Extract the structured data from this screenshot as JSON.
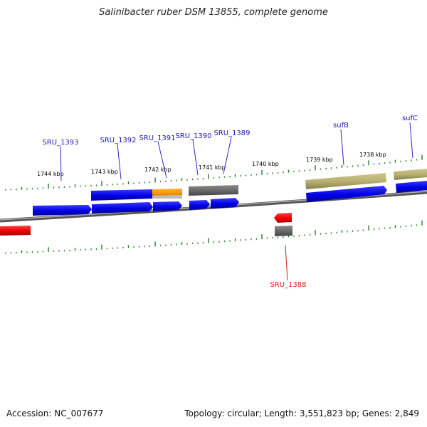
{
  "title": "Salinibacter ruber DSM 13855, complete genome",
  "accession": "Accession: NC_007677",
  "summary": "Topology: circular; Length: 3,551,823 bp; Genes: 2,849",
  "colors": {
    "forward_cds": "#0000ee",
    "reverse_cds": "#ee0000",
    "orange": "#ff9900",
    "gray": "#666666",
    "khaki": "#b5ad6e",
    "tick": "#2a7a2a",
    "label_forward": "#1a1aaa",
    "label_reverse": "#cc2222"
  },
  "scale_labels": [
    "1744 kbp",
    "1743 kbp",
    "1742 kbp",
    "1741 kbp",
    "1740 kbp",
    "1739 kbp",
    "1738 kbp"
  ],
  "gene_labels": [
    {
      "text": "SRU_1393",
      "color": "label_forward"
    },
    {
      "text": "SRU_1392",
      "color": "label_forward"
    },
    {
      "text": "SRU_1391",
      "color": "label_forward"
    },
    {
      "text": "SRU_1390",
      "color": "label_forward"
    },
    {
      "text": "SRU_1389",
      "color": "label_forward"
    },
    {
      "text": "sufB",
      "color": "label_forward"
    },
    {
      "text": "sufC",
      "color": "label_forward"
    },
    {
      "text": "SRU_1388",
      "color": "label_reverse"
    }
  ]
}
